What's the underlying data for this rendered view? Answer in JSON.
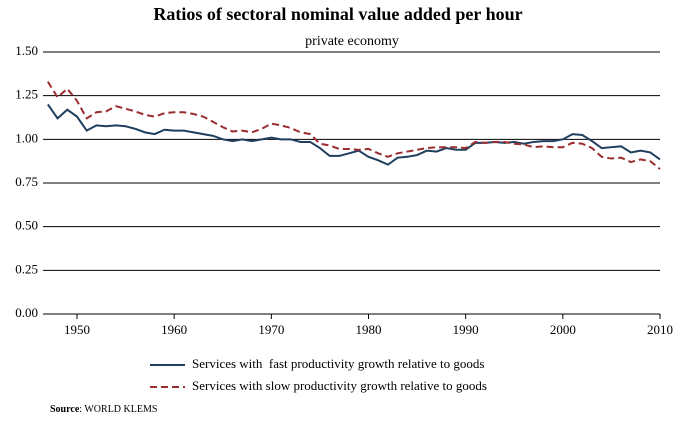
{
  "chart_data": {
    "type": "line",
    "title": "Ratios of sectoral nominal value added per hour",
    "subtitle": "private economy",
    "x": [
      1947,
      1948,
      1949,
      1950,
      1951,
      1952,
      1953,
      1954,
      1955,
      1956,
      1957,
      1958,
      1959,
      1960,
      1961,
      1962,
      1963,
      1964,
      1965,
      1966,
      1967,
      1968,
      1969,
      1970,
      1971,
      1972,
      1973,
      1974,
      1975,
      1976,
      1977,
      1978,
      1979,
      1980,
      1981,
      1982,
      1983,
      1984,
      1985,
      1986,
      1987,
      1988,
      1989,
      1990,
      1991,
      1992,
      1993,
      1994,
      1995,
      1996,
      1997,
      1998,
      1999,
      2000,
      2001,
      2002,
      2003,
      2004,
      2005,
      2006,
      2007,
      2008,
      2009,
      2010
    ],
    "series": [
      {
        "name": "Services with  fast productivity growth relative to goods",
        "color": "#1f3f5f",
        "dash": "solid",
        "values": [
          1.2,
          1.12,
          1.17,
          1.13,
          1.05,
          1.08,
          1.075,
          1.08,
          1.075,
          1.06,
          1.04,
          1.03,
          1.055,
          1.05,
          1.05,
          1.04,
          1.03,
          1.02,
          1.0,
          0.99,
          1.0,
          0.99,
          1.0,
          1.01,
          1.0,
          1.0,
          0.985,
          0.985,
          0.95,
          0.905,
          0.905,
          0.92,
          0.935,
          0.9,
          0.88,
          0.855,
          0.895,
          0.9,
          0.91,
          0.935,
          0.93,
          0.95,
          0.94,
          0.94,
          0.98,
          0.98,
          0.985,
          0.98,
          0.985,
          0.975,
          0.985,
          0.99,
          0.99,
          1.0,
          1.03,
          1.025,
          0.99,
          0.95,
          0.955,
          0.96,
          0.925,
          0.935,
          0.925,
          0.885
        ]
      },
      {
        "name": "Services with slow productivity growth relative to goods",
        "color": "#9b2d30",
        "dash": "dashed",
        "values": [
          1.33,
          1.24,
          1.29,
          1.22,
          1.12,
          1.155,
          1.16,
          1.19,
          1.175,
          1.16,
          1.14,
          1.13,
          1.15,
          1.155,
          1.155,
          1.145,
          1.13,
          1.1,
          1.07,
          1.045,
          1.05,
          1.04,
          1.06,
          1.09,
          1.08,
          1.065,
          1.04,
          1.03,
          0.975,
          0.965,
          0.945,
          0.945,
          0.94,
          0.945,
          0.92,
          0.9,
          0.92,
          0.93,
          0.94,
          0.95,
          0.955,
          0.955,
          0.955,
          0.95,
          0.985,
          0.98,
          0.985,
          0.985,
          0.975,
          0.97,
          0.955,
          0.96,
          0.955,
          0.955,
          0.98,
          0.975,
          0.95,
          0.9,
          0.89,
          0.895,
          0.87,
          0.885,
          0.875,
          0.83
        ]
      }
    ],
    "xlim": [
      1946.5,
      2010
    ],
    "xticks": [
      1950,
      1960,
      1970,
      1980,
      1990,
      2000,
      2010
    ],
    "ylim": [
      0,
      1.5
    ],
    "yticks": [
      {
        "value": 0,
        "label": "0.00"
      },
      0.25,
      {
        "value": 0.5,
        "label": "0.50"
      },
      0.75,
      {
        "value": 1,
        "label": "1.00"
      },
      1.25,
      {
        "value": 1.5,
        "label": "1.50"
      }
    ],
    "grid": true,
    "source_label": "Source",
    "source_text": ": WORLD KLEMS"
  }
}
